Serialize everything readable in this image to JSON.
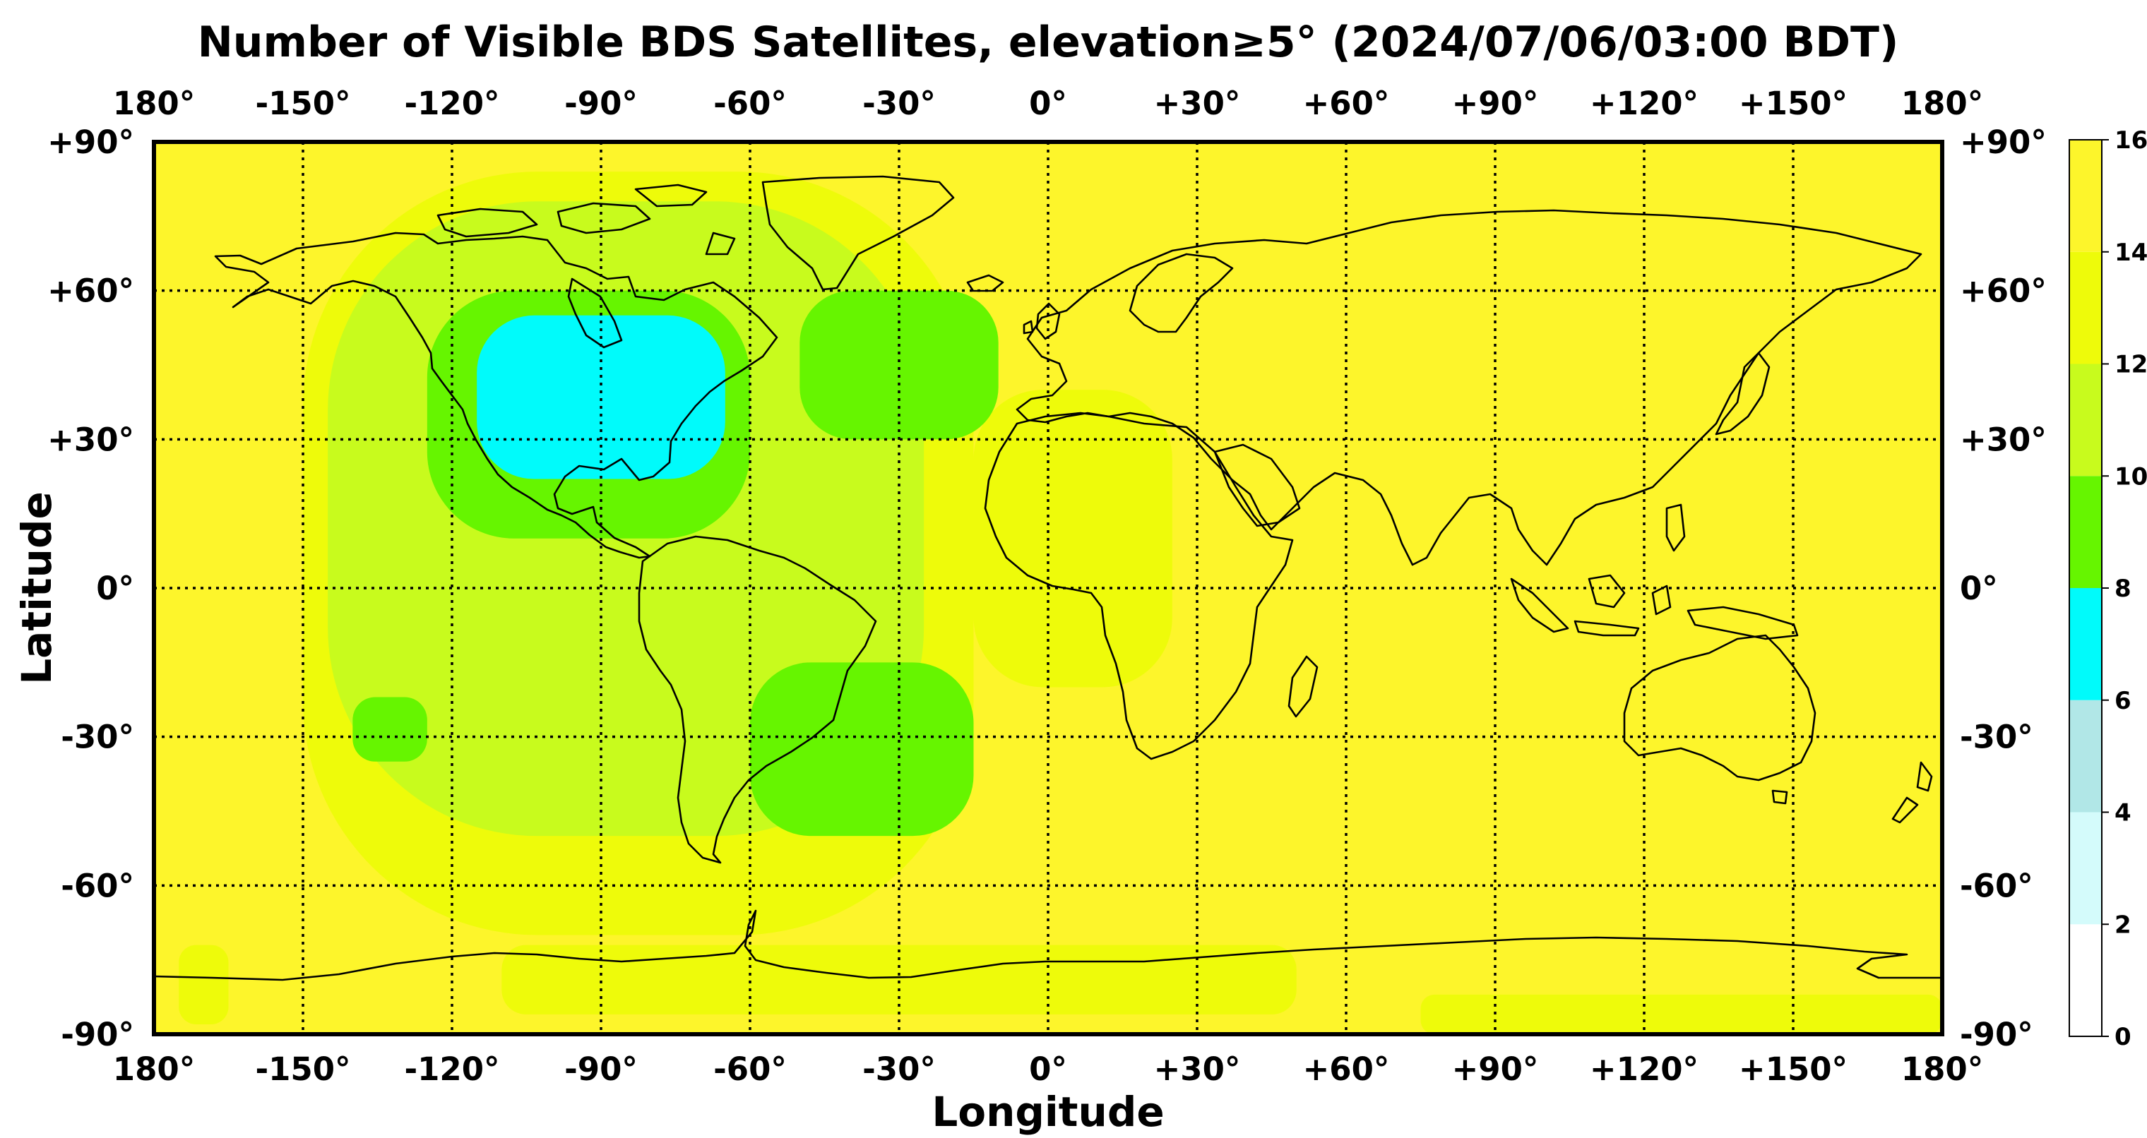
{
  "chart_data": {
    "type": "heatmap",
    "title": "Number of Visible BDS Satellites, elevation≥5° (2024/07/06/03:00 BDT)",
    "xlabel": "Longitude",
    "ylabel": "Latitude",
    "xlim": [
      -180,
      180
    ],
    "ylim": [
      -90,
      90
    ],
    "grid": true,
    "x_ticks": [
      {
        "value": -180,
        "label": "180°"
      },
      {
        "value": -150,
        "label": "-150°"
      },
      {
        "value": -120,
        "label": "-120°"
      },
      {
        "value": -90,
        "label": "-90°"
      },
      {
        "value": -60,
        "label": "-60°"
      },
      {
        "value": -30,
        "label": "-30°"
      },
      {
        "value": 0,
        "label": "0°"
      },
      {
        "value": 30,
        "label": "+30°"
      },
      {
        "value": 60,
        "label": "+60°"
      },
      {
        "value": 90,
        "label": "+90°"
      },
      {
        "value": 120,
        "label": "+120°"
      },
      {
        "value": 150,
        "label": "+150°"
      },
      {
        "value": 180,
        "label": "180°"
      }
    ],
    "y_ticks": [
      {
        "value": 90,
        "label": "+90°"
      },
      {
        "value": 60,
        "label": "+60°"
      },
      {
        "value": 30,
        "label": "+30°"
      },
      {
        "value": 0,
        "label": "0°"
      },
      {
        "value": -30,
        "label": "-30°"
      },
      {
        "value": -60,
        "label": "-60°"
      },
      {
        "value": -90,
        "label": "-90°"
      }
    ],
    "colorbar": {
      "ticks": [
        "0",
        "2",
        "4",
        "6",
        "8",
        "10",
        "12",
        "14",
        "16"
      ],
      "bins": [
        {
          "min": 0,
          "max": 2,
          "color": "#ffffff"
        },
        {
          "min": 2,
          "max": 4,
          "color": "#d4fbfb"
        },
        {
          "min": 4,
          "max": 6,
          "color": "#b1e7e7"
        },
        {
          "min": 6,
          "max": 8,
          "color": "#00fbfb"
        },
        {
          "min": 8,
          "max": 10,
          "color": "#66f500"
        },
        {
          "min": 10,
          "max": 12,
          "color": "#c8fb1d"
        },
        {
          "min": 12,
          "max": 14,
          "color": "#eefb0a"
        },
        {
          "min": 14,
          "max": 16,
          "color": "#fdf52b"
        }
      ]
    },
    "background_value": 15,
    "regions": [
      {
        "value": 13,
        "lon": [
          -150,
          -15
        ],
        "lat": [
          -70,
          84
        ]
      },
      {
        "value": 13,
        "lon": [
          -175,
          -165
        ],
        "lat": [
          -88,
          -72
        ]
      },
      {
        "value": 13,
        "lon": [
          -110,
          50
        ],
        "lat": [
          -86,
          -72
        ]
      },
      {
        "value": 13,
        "lon": [
          75,
          180
        ],
        "lat": [
          -90,
          -82
        ]
      },
      {
        "value": 13,
        "lon": [
          -15,
          25
        ],
        "lat": [
          -20,
          40
        ]
      },
      {
        "value": 11,
        "lon": [
          -145,
          -25
        ],
        "lat": [
          -50,
          78
        ]
      },
      {
        "value": 9,
        "lon": [
          -125,
          -60
        ],
        "lat": [
          10,
          60
        ]
      },
      {
        "value": 9,
        "lon": [
          -50,
          -10
        ],
        "lat": [
          30,
          60
        ]
      },
      {
        "value": 9,
        "lon": [
          -60,
          -15
        ],
        "lat": [
          -50,
          -15
        ]
      },
      {
        "value": 9,
        "lon": [
          -140,
          -125
        ],
        "lat": [
          -35,
          -22
        ]
      },
      {
        "value": 7,
        "lon": [
          -115,
          -65
        ],
        "lat": [
          22,
          55
        ]
      }
    ]
  }
}
